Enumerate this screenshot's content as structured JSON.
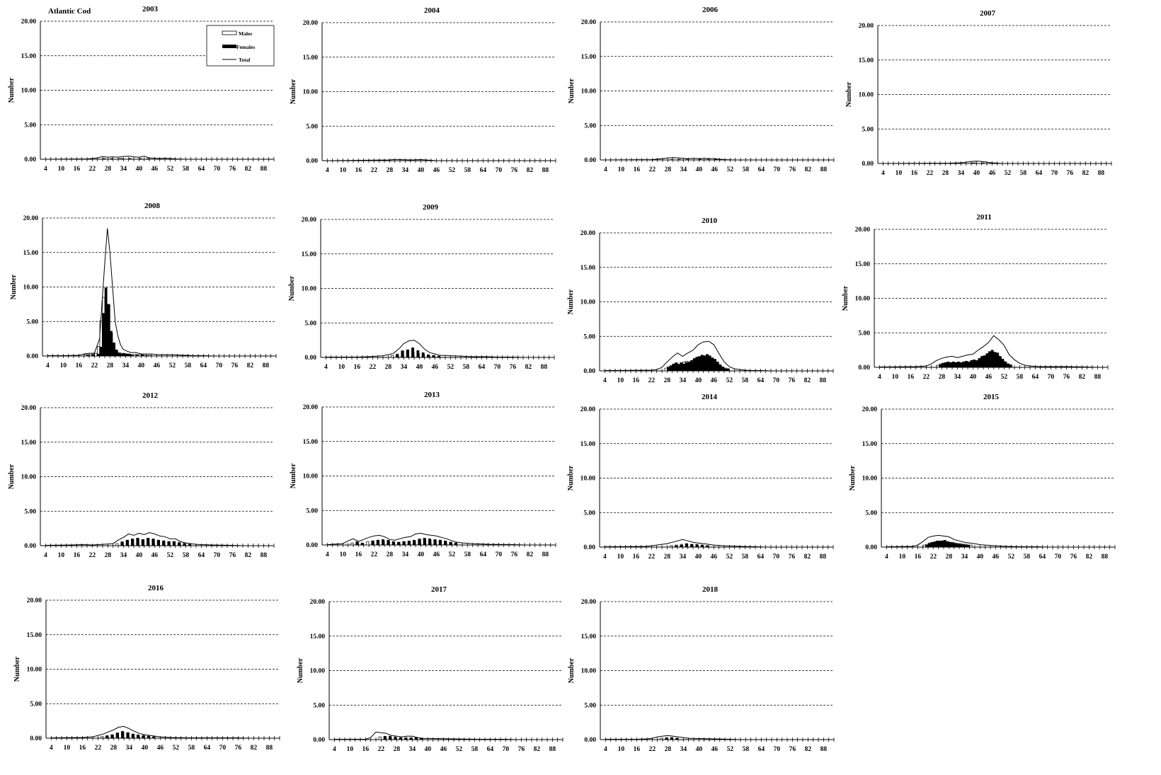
{
  "species_label": "Atlantic Cod",
  "chart_data": {
    "type": "bar",
    "ylabel": "Number",
    "ylim": [
      0,
      20
    ],
    "yticks": [
      "0.00",
      "5.00",
      "10.00",
      "15.00",
      "20.00"
    ],
    "xticks": [
      "4",
      "10",
      "16",
      "22",
      "28",
      "34",
      "40",
      "46",
      "52",
      "58",
      "64",
      "70",
      "76",
      "82",
      "88"
    ],
    "legend": {
      "position": "top-right",
      "entries": [
        "Males",
        "Females",
        "Total"
      ]
    },
    "colors": {
      "males": "#ffffff",
      "females": "#000000",
      "total": "#000000"
    },
    "panels": [
      {
        "title": "2003",
        "males": {
          "27": 0.1,
          "30": 0.1,
          "33": 0.1,
          "37": 0.1,
          "41": 0.1
        },
        "females": {
          "26": 0.1,
          "29": 0.1,
          "33": 0.1,
          "36": 0.1,
          "40": 0.1,
          "43": 0.1
        },
        "total": {
          "20": 0.05,
          "22": 0.1,
          "24": 0.2,
          "26": 0.4,
          "28": 0.3,
          "30": 0.35,
          "32": 0.3,
          "34": 0.4,
          "36": 0.45,
          "38": 0.35,
          "40": 0.3,
          "42": 0.45,
          "44": 0.2,
          "46": 0.15,
          "48": 0.1,
          "50": 0.15,
          "52": 0.1,
          "54": 0.05
        }
      },
      {
        "title": "2004",
        "males": {},
        "females": {},
        "total": {
          "28": 0.1,
          "30": 0.2,
          "32": 0.15,
          "36": 0.1,
          "40": 0.15,
          "42": 0.1
        }
      },
      {
        "title": "2006",
        "males": {
          "30": 0.1,
          "36": 0.1,
          "44": 0.1
        },
        "females": {
          "32": 0.1,
          "40": 0.1,
          "46": 0.1
        },
        "total": {
          "22": 0.05,
          "26": 0.2,
          "28": 0.3,
          "30": 0.35,
          "32": 0.3,
          "34": 0.25,
          "36": 0.2,
          "38": 0.25,
          "40": 0.2,
          "42": 0.25,
          "44": 0.2,
          "46": 0.2,
          "48": 0.1,
          "50": 0.05
        }
      },
      {
        "title": "2007",
        "males": {
          "40": 0.1
        },
        "females": {
          "38": 0.1,
          "42": 0.1
        },
        "total": {
          "30": 0.05,
          "34": 0.1,
          "36": 0.2,
          "38": 0.3,
          "40": 0.35,
          "42": 0.3,
          "44": 0.2,
          "46": 0.1
        }
      },
      {
        "title": "2008",
        "males": {
          "19": 0.2,
          "20": 0.2,
          "21": 0.2,
          "22": 0.3,
          "23": 0.4,
          "24": 1.4,
          "25": 5.1,
          "26": 8.5,
          "27": 6.6,
          "28": 7.4,
          "29": 3.3,
          "30": 1.9,
          "31": 0.8,
          "32": 0.5,
          "33": 0.4,
          "34": 0.3,
          "35": 0.3,
          "36": 0.2,
          "38": 0.2,
          "40": 0.2,
          "42": 0.1,
          "44": 0.1
        },
        "females": {
          "19": 0.1,
          "21": 0.2,
          "23": 0.3,
          "24": 1.3,
          "25": 6.2,
          "26": 9.9,
          "27": 7.5,
          "28": 3.6,
          "29": 1.9,
          "30": 0.9,
          "31": 0.4,
          "32": 0.3,
          "33": 0.4,
          "34": 0.3,
          "35": 0.3,
          "36": 0.2,
          "38": 0.2,
          "40": 0.2,
          "42": 0.1
        },
        "total": {
          "4": 0.05,
          "10": 0.05,
          "16": 0.1,
          "18": 0.3,
          "20": 0.4,
          "22": 0.4,
          "24": 2.5,
          "25": 8,
          "26": 13.5,
          "27": 18.5,
          "28": 15,
          "29": 10,
          "30": 5,
          "31": 3,
          "32": 1.7,
          "33": 1,
          "34": 0.8,
          "36": 0.5,
          "38": 0.5,
          "40": 0.3,
          "42": 0.3,
          "44": 0.3,
          "46": 0.2,
          "48": 0.2,
          "50": 0.2,
          "52": 0.2,
          "54": 0.15,
          "56": 0.1,
          "58": 0.1,
          "60": 0.05,
          "64": 0.05
        }
      },
      {
        "title": "2009",
        "males": {
          "30": 0.3,
          "32": 0.5,
          "34": 1.0,
          "36": 1.1,
          "38": 0.8,
          "40": 0.6,
          "42": 0.4,
          "44": 0.2,
          "46": 0.2
        },
        "females": {
          "31": 0.4,
          "33": 0.9,
          "35": 1.1,
          "37": 1.4,
          "39": 1.0,
          "41": 0.7,
          "43": 0.4,
          "45": 0.3,
          "47": 0.2
        },
        "total": {
          "4": 0.05,
          "16": 0.05,
          "20": 0.1,
          "24": 0.2,
          "26": 0.25,
          "28": 0.4,
          "30": 0.6,
          "32": 1.2,
          "34": 2.0,
          "36": 2.4,
          "38": 2.5,
          "40": 2.0,
          "42": 1.2,
          "44": 0.7,
          "46": 0.5,
          "48": 0.3,
          "50": 0.3,
          "52": 0.25,
          "56": 0.2,
          "60": 0.1,
          "66": 0.1,
          "70": 0.05,
          "76": 0.05
        }
      },
      {
        "title": "2010",
        "males": {
          "28": 0.4,
          "29": 0.6,
          "30": 0.8,
          "31": 1.0,
          "32": 1.2,
          "33": 1.0,
          "34": 1.0,
          "35": 1.3,
          "36": 1.4,
          "37": 1.2,
          "38": 1.5,
          "39": 1.7,
          "40": 1.8,
          "41": 2.0,
          "42": 2.1,
          "43": 1.9,
          "44": 2.0,
          "45": 1.6,
          "46": 1.6,
          "47": 1.2,
          "48": 1.0,
          "49": 0.7,
          "50": 0.5,
          "51": 0.4,
          "52": 0.3
        },
        "females": {
          "28": 0.5,
          "29": 0.7,
          "30": 1.0,
          "31": 1.1,
          "32": 0.9,
          "33": 1.2,
          "34": 1.0,
          "35": 1.2,
          "36": 1.3,
          "37": 1.5,
          "38": 1.8,
          "39": 2.0,
          "40": 2.1,
          "41": 2.3,
          "42": 2.2,
          "43": 2.4,
          "44": 2.2,
          "45": 1.9,
          "46": 1.7,
          "47": 1.3,
          "48": 0.9,
          "49": 0.6,
          "50": 0.3,
          "51": 0.3
        },
        "total": {
          "4": 0.05,
          "22": 0.1,
          "24": 0.2,
          "26": 0.5,
          "28": 1.3,
          "30": 2.0,
          "32": 2.6,
          "34": 2.1,
          "36": 2.6,
          "38": 3.0,
          "40": 3.8,
          "42": 4.2,
          "44": 4.3,
          "46": 3.8,
          "48": 2.5,
          "50": 1.3,
          "52": 0.6,
          "54": 0.3,
          "56": 0.2,
          "58": 0.1,
          "60": 0.05,
          "64": 0.05
        }
      },
      {
        "title": "2011",
        "males": {
          "27": 0.3,
          "28": 0.5,
          "29": 0.6,
          "30": 0.6,
          "31": 0.7,
          "32": 0.6,
          "33": 0.7,
          "34": 0.7,
          "35": 0.7,
          "36": 0.6,
          "37": 0.8,
          "38": 0.8,
          "39": 0.7,
          "40": 0.8,
          "41": 0.9,
          "42": 0.9,
          "43": 1.1,
          "44": 1.2,
          "45": 1.5,
          "46": 1.7,
          "47": 2.1,
          "48": 2.2,
          "49": 2.0,
          "50": 1.8,
          "51": 1.4,
          "52": 1.0,
          "53": 0.8,
          "54": 0.5,
          "55": 0.4
        },
        "females": {
          "27": 0.4,
          "28": 0.6,
          "29": 0.7,
          "30": 0.8,
          "31": 0.7,
          "32": 0.8,
          "33": 0.7,
          "34": 0.8,
          "35": 0.7,
          "36": 0.8,
          "37": 0.9,
          "38": 0.8,
          "39": 1.0,
          "40": 1.1,
          "41": 1.0,
          "42": 1.3,
          "43": 1.6,
          "44": 1.7,
          "45": 2.0,
          "46": 2.3,
          "47": 2.5,
          "48": 2.2,
          "49": 2.1,
          "50": 1.6,
          "51": 1.2,
          "52": 0.8,
          "53": 0.5,
          "54": 0.3
        },
        "total": {
          "4": 0.05,
          "18": 0.1,
          "22": 0.2,
          "24": 0.5,
          "26": 1.0,
          "28": 1.3,
          "30": 1.5,
          "32": 1.6,
          "34": 1.4,
          "36": 1.6,
          "38": 1.8,
          "40": 1.9,
          "42": 2.5,
          "44": 3.0,
          "46": 3.6,
          "48": 4.6,
          "50": 4.0,
          "52": 3.2,
          "54": 1.8,
          "56": 1.1,
          "58": 0.6,
          "60": 0.3,
          "62": 0.2,
          "66": 0.1,
          "76": 0.1,
          "84": 0.05
        }
      },
      {
        "title": "2012",
        "males": {
          "32": 0.3,
          "34": 0.6,
          "36": 0.8,
          "38": 0.9,
          "40": 1.0,
          "42": 0.9,
          "44": 1.0,
          "46": 0.9,
          "48": 0.8,
          "50": 0.7,
          "52": 0.6,
          "54": 0.6,
          "56": 0.5,
          "58": 0.4,
          "60": 0.2
        },
        "females": {
          "33": 0.5,
          "35": 0.8,
          "37": 1.0,
          "39": 1.1,
          "41": 0.9,
          "43": 1.1,
          "45": 1.0,
          "47": 0.8,
          "49": 0.7,
          "51": 0.6,
          "53": 0.6,
          "55": 0.4,
          "57": 0.3,
          "59": 0.2
        },
        "total": {
          "4": 0.05,
          "14": 0.1,
          "18": 0.15,
          "22": 0.1,
          "26": 0.2,
          "30": 0.3,
          "32": 0.8,
          "34": 1.2,
          "36": 1.7,
          "38": 1.5,
          "40": 1.8,
          "42": 1.6,
          "44": 1.9,
          "46": 1.7,
          "48": 1.4,
          "50": 1.3,
          "52": 1.0,
          "54": 1.0,
          "56": 0.6,
          "58": 0.4,
          "60": 0.3,
          "62": 0.2,
          "64": 0.15,
          "68": 0.1,
          "76": 0.05
        }
      },
      {
        "title": "2013",
        "males": {
          "14": 0.3,
          "16": 0.5,
          "20": 0.5,
          "22": 0.6,
          "24": 0.7,
          "26": 0.6,
          "28": 0.6,
          "30": 0.4,
          "32": 0.4,
          "34": 0.5,
          "36": 0.5,
          "38": 0.6,
          "40": 0.9,
          "42": 0.8,
          "44": 0.7,
          "46": 0.7,
          "48": 0.7,
          "50": 0.5,
          "52": 0.4,
          "54": 0.3
        },
        "females": {
          "15": 0.4,
          "17": 0.3,
          "21": 0.6,
          "23": 0.7,
          "25": 0.8,
          "27": 0.7,
          "29": 0.5,
          "31": 0.4,
          "33": 0.5,
          "35": 0.6,
          "37": 0.7,
          "39": 0.8,
          "41": 1.0,
          "43": 0.9,
          "45": 0.8,
          "47": 0.7,
          "49": 0.6,
          "51": 0.4,
          "53": 0.3
        },
        "total": {
          "4": 0.05,
          "10": 0.2,
          "12": 0.6,
          "14": 0.9,
          "16": 0.5,
          "18": 0.8,
          "20": 1.1,
          "22": 1.3,
          "24": 1.4,
          "26": 1.2,
          "28": 0.8,
          "30": 0.7,
          "32": 0.9,
          "34": 1.1,
          "36": 1.2,
          "38": 1.6,
          "40": 1.7,
          "42": 1.5,
          "44": 1.4,
          "46": 1.3,
          "48": 1.1,
          "50": 0.9,
          "52": 0.6,
          "54": 0.4,
          "56": 0.3,
          "60": 0.2,
          "66": 0.1,
          "76": 0.05
        }
      },
      {
        "title": "2014",
        "males": {
          "30": 0.2,
          "32": 0.3,
          "34": 0.4,
          "36": 0.5,
          "38": 0.4,
          "40": 0.3,
          "42": 0.3,
          "44": 0.2
        },
        "females": {
          "31": 0.2,
          "33": 0.3,
          "35": 0.5,
          "37": 0.4,
          "39": 0.4,
          "41": 0.3,
          "43": 0.2
        },
        "total": {
          "4": 0.05,
          "20": 0.1,
          "24": 0.3,
          "26": 0.4,
          "28": 0.5,
          "30": 0.7,
          "32": 0.9,
          "34": 1.1,
          "36": 0.9,
          "38": 0.7,
          "40": 0.6,
          "42": 0.5,
          "44": 0.4,
          "46": 0.3,
          "50": 0.2,
          "56": 0.1,
          "62": 0.05
        }
      },
      {
        "title": "2015",
        "males": {
          "19": 0.3,
          "20": 0.4,
          "21": 0.6,
          "22": 0.6,
          "23": 0.8,
          "24": 0.8,
          "25": 0.8,
          "26": 0.9,
          "27": 0.8,
          "28": 0.8,
          "29": 0.7,
          "30": 0.7,
          "31": 0.6,
          "32": 0.5,
          "33": 0.5,
          "34": 0.4,
          "35": 0.4,
          "36": 0.3,
          "37": 0.3
        },
        "females": {
          "19": 0.3,
          "20": 0.5,
          "21": 0.7,
          "22": 0.7,
          "23": 0.9,
          "24": 0.9,
          "25": 0.9,
          "26": 1.0,
          "27": 0.8,
          "28": 0.7,
          "29": 0.6,
          "30": 0.5,
          "31": 0.5,
          "32": 0.4,
          "33": 0.4,
          "34": 0.3,
          "35": 0.3
        },
        "total": {
          "4": 0.05,
          "14": 0.1,
          "16": 0.3,
          "18": 0.8,
          "20": 1.4,
          "22": 1.6,
          "24": 1.7,
          "26": 1.6,
          "28": 1.5,
          "30": 1.1,
          "32": 0.9,
          "34": 0.7,
          "36": 0.6,
          "38": 0.5,
          "40": 0.35,
          "42": 0.3,
          "44": 0.25,
          "46": 0.2,
          "50": 0.1,
          "56": 0.05,
          "62": 0.05
        }
      },
      {
        "title": "2016",
        "males": {
          "24": 0.2,
          "26": 0.4,
          "28": 0.5,
          "30": 0.8,
          "32": 0.9,
          "34": 0.8,
          "36": 0.6,
          "38": 0.4,
          "40": 0.4,
          "42": 0.3,
          "44": 0.2
        },
        "females": {
          "25": 0.3,
          "27": 0.5,
          "29": 0.7,
          "31": 1.0,
          "33": 0.8,
          "35": 0.6,
          "37": 0.5,
          "39": 0.4,
          "41": 0.3,
          "43": 0.2
        },
        "total": {
          "4": 0.05,
          "16": 0.1,
          "20": 0.2,
          "22": 0.4,
          "24": 0.6,
          "26": 0.9,
          "28": 1.2,
          "30": 1.6,
          "32": 1.7,
          "34": 1.4,
          "36": 1.0,
          "38": 0.7,
          "40": 0.5,
          "42": 0.4,
          "44": 0.3,
          "46": 0.2,
          "50": 0.1,
          "56": 0.05,
          "66": 0.05,
          "76": 0.05
        }
      },
      {
        "title": "2017",
        "males": {
          "22": 0.4,
          "24": 0.4,
          "26": 0.3,
          "28": 0.2,
          "30": 0.2,
          "32": 0.3,
          "34": 0.3,
          "36": 0.2,
          "38": 0.2
        },
        "females": {
          "23": 0.5,
          "25": 0.5,
          "27": 0.4,
          "29": 0.3,
          "31": 0.2,
          "33": 0.2,
          "35": 0.3,
          "37": 0.2
        },
        "total": {
          "4": 0.05,
          "16": 0.05,
          "18": 0.3,
          "20": 1.1,
          "22": 1.0,
          "24": 0.9,
          "26": 0.6,
          "28": 0.5,
          "30": 0.4,
          "32": 0.5,
          "34": 0.5,
          "36": 0.3,
          "38": 0.2,
          "42": 0.15,
          "50": 0.1,
          "60": 0.05,
          "70": 0.05
        }
      },
      {
        "title": "2018",
        "males": {
          "26": 0.2,
          "28": 0.3,
          "30": 0.3,
          "32": 0.2
        },
        "females": {
          "27": 0.2,
          "29": 0.3,
          "31": 0.2
        },
        "total": {
          "4": 0.05,
          "16": 0.05,
          "20": 0.1,
          "22": 0.2,
          "24": 0.4,
          "26": 0.5,
          "28": 0.6,
          "30": 0.5,
          "32": 0.4,
          "34": 0.3,
          "36": 0.2,
          "40": 0.15,
          "46": 0.1,
          "52": 0.05
        }
      }
    ]
  }
}
